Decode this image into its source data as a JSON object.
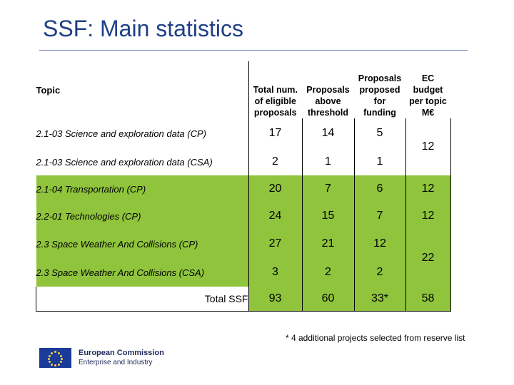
{
  "title": "SSF: Main statistics",
  "colors": {
    "title": "#1f3f86",
    "green_row": "#8fc43c"
  },
  "table": {
    "headers": {
      "topic": "Topic",
      "eligible": [
        "Total num.",
        "of eligible",
        "proposals"
      ],
      "above": [
        "Proposals",
        "above",
        "threshold"
      ],
      "funding": [
        "Proposals",
        "proposed",
        "for",
        "funding"
      ],
      "budget": [
        "EC",
        "budget",
        "per topic",
        "M€"
      ]
    },
    "rows": [
      {
        "topic": "2.1-03 Science and exploration data (CP)",
        "eligible": "17",
        "above": "14",
        "funding": "5",
        "budget": "12"
      },
      {
        "topic": "2.1-03 Science and exploration data (CSA)",
        "eligible": "2",
        "above": "1",
        "funding": "1"
      },
      {
        "topic": "2.1-04 Transportation (CP)",
        "eligible": "20",
        "above": "7",
        "funding": "6",
        "budget": "12"
      },
      {
        "topic": "2.2-01 Technologies (CP)",
        "eligible": "24",
        "above": "15",
        "funding": "7",
        "budget": "12"
      },
      {
        "topic": "2.3 Space Weather And Collisions (CP)",
        "eligible": "27",
        "above": "21",
        "funding": "12",
        "budget": "22"
      },
      {
        "topic": "2.3 Space Weather And Collisions (CSA)",
        "eligible": "3",
        "above": "2",
        "funding": "2"
      }
    ],
    "total": {
      "label": "Total SSF",
      "eligible": "93",
      "above": "60",
      "funding": "33*",
      "budget": "58"
    }
  },
  "footnote": "* 4 additional projects selected from reserve list",
  "logo": {
    "line1": "European Commission",
    "line2": "Enterprise and Industry"
  }
}
